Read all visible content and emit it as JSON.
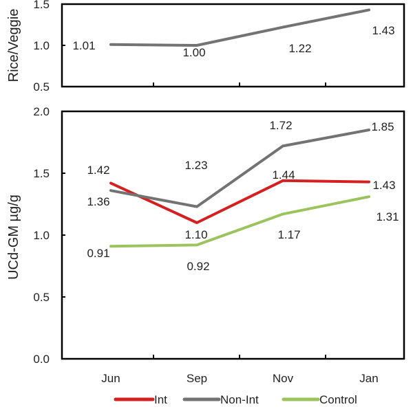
{
  "chart_data": [
    {
      "type": "line",
      "categories": [
        "Jun",
        "Sep",
        "Nov",
        "Jan"
      ],
      "ylabel": "Rice/Veggie",
      "ylim": [
        0.5,
        1.5
      ],
      "yticks": [
        "0.5",
        "1.0",
        "1.5"
      ],
      "grid": false,
      "series": [
        {
          "values": [
            1.01,
            1.0,
            1.22,
            1.43
          ],
          "labels": [
            "1.01",
            "1.00",
            "1.22",
            "1.43"
          ],
          "color": "#737373"
        }
      ]
    },
    {
      "type": "line",
      "categories": [
        "Jun",
        "Sep",
        "Nov",
        "Jan"
      ],
      "ylabel": "UCd-GM µg/g",
      "ylim": [
        0.0,
        2.0
      ],
      "yticks": [
        "0.0",
        "0.5",
        "1.0",
        "1.5",
        "2.0"
      ],
      "grid": false,
      "legend_position": "bottom",
      "series": [
        {
          "name": "Int",
          "values": [
            1.42,
            1.1,
            1.44,
            1.43
          ],
          "labels": [
            "1.42",
            "1.10",
            "1.44",
            "1.43"
          ],
          "color": "#d42020"
        },
        {
          "name": "Non-Int",
          "values": [
            1.36,
            1.23,
            1.72,
            1.85
          ],
          "labels": [
            "1.36",
            "1.23",
            "1.72",
            "1.85"
          ],
          "color": "#737373"
        },
        {
          "name": "Control",
          "values": [
            0.91,
            0.92,
            1.17,
            1.31
          ],
          "labels": [
            "0.91",
            "0.92",
            "1.17",
            "1.31"
          ],
          "color": "#9cc45e"
        }
      ]
    }
  ]
}
